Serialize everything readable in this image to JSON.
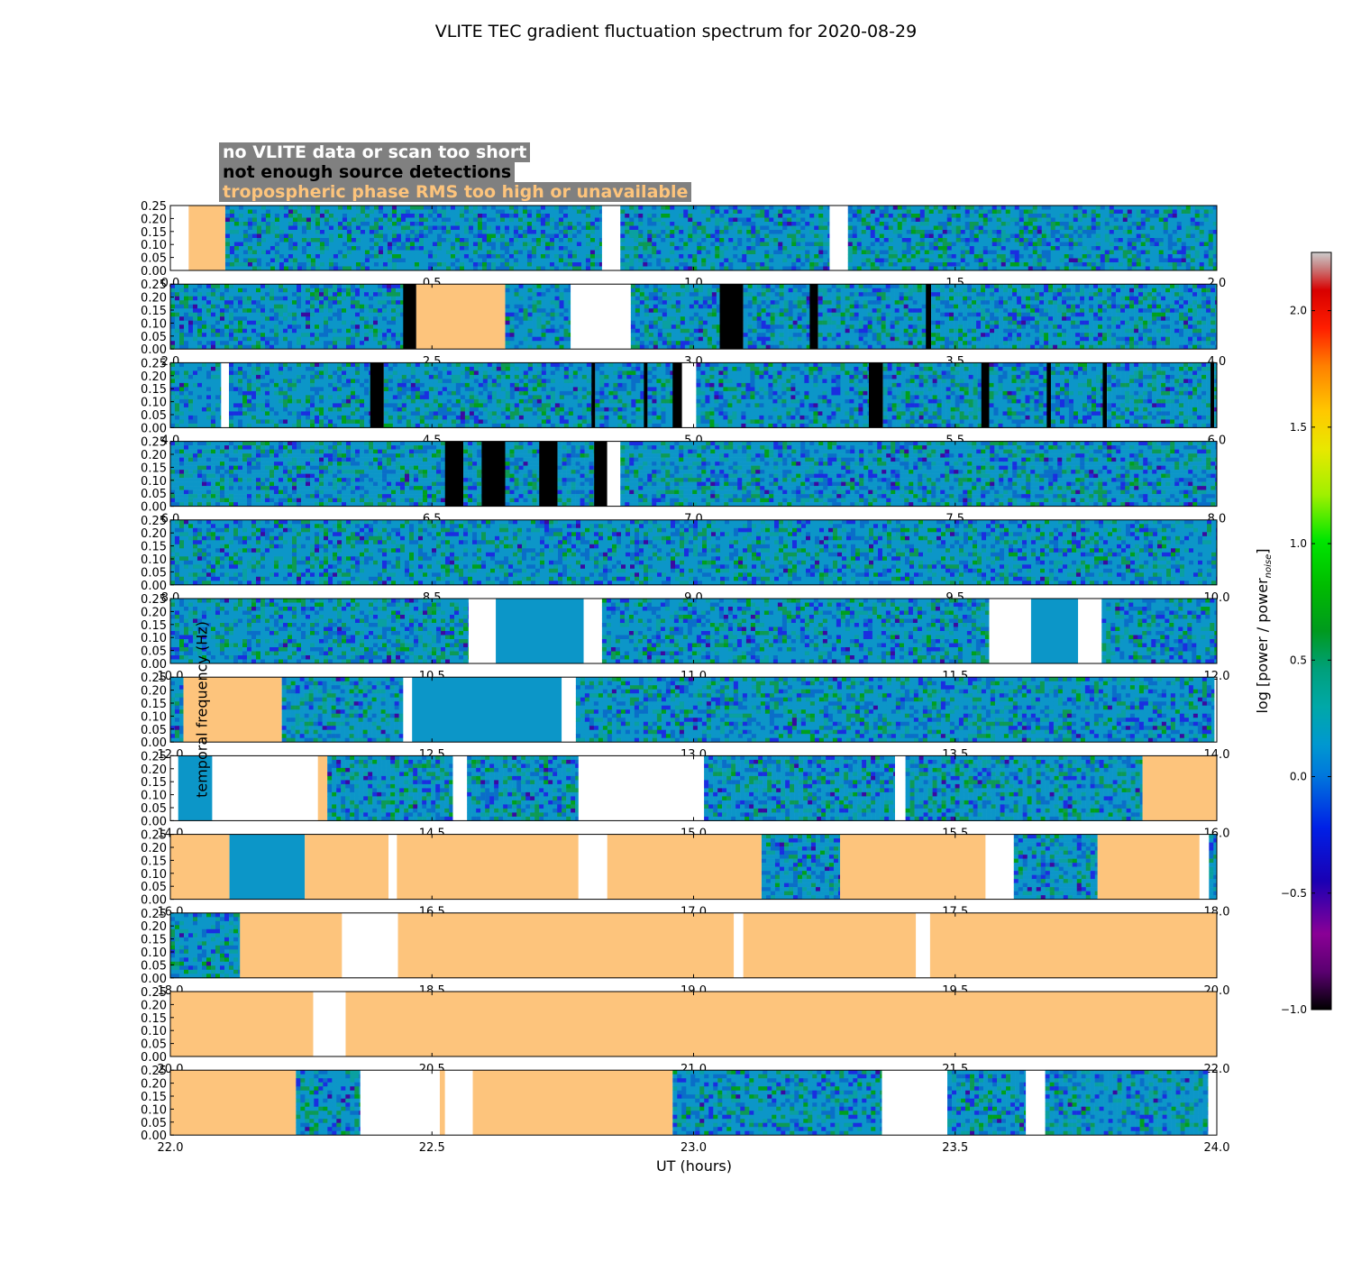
{
  "chart_data": {
    "type": "heatmap",
    "title": "VLITE TEC gradient fluctuation spectrum for 2020-08-29",
    "xlabel": "UT (hours)",
    "ylabel": "temporal frequency (Hz)",
    "colorbar": {
      "label": "log [power / power",
      "label_sub": "noise",
      "label_end": "]",
      "range": [
        -1.0,
        2.25
      ],
      "ticks": [
        "−1.0",
        "−0.5",
        "0.0",
        "0.5",
        "1.0",
        "1.5",
        "2.0"
      ],
      "tick_values": [
        -1.0,
        -0.5,
        0.0,
        0.5,
        1.0,
        1.5,
        2.0
      ],
      "colormap": "nipy_spectral"
    },
    "legend": [
      {
        "label": "no VLITE data or scan too short",
        "color": "#ffffff"
      },
      {
        "label": "not enough source detections",
        "color": "#000000"
      },
      {
        "label": "tropospheric phase RMS too high or unavailable",
        "color": "#fdc47c"
      }
    ],
    "ylim": [
      0,
      0.25
    ],
    "yticks": [
      "0.00",
      "0.05",
      "0.10",
      "0.15",
      "0.20",
      "0.25"
    ],
    "panels": [
      {
        "xlim": [
          0,
          2
        ],
        "xticks": [
          "0.0",
          "0.5",
          "1.0",
          "1.5",
          "2.0"
        ],
        "segments": [
          [
            0,
            0.035,
            "white"
          ],
          [
            0.035,
            0.105,
            "orange"
          ],
          [
            0.105,
            0.825,
            "data"
          ],
          [
            0.825,
            0.86,
            "white"
          ],
          [
            0.86,
            1.26,
            "data"
          ],
          [
            1.26,
            1.295,
            "white"
          ],
          [
            1.295,
            2,
            "data"
          ]
        ]
      },
      {
        "xlim": [
          2,
          4
        ],
        "xticks": [
          "2.0",
          "2.5",
          "3.0",
          "3.5",
          "4.0"
        ],
        "segments": [
          [
            2,
            2.445,
            "data"
          ],
          [
            2.445,
            2.47,
            "black"
          ],
          [
            2.47,
            2.64,
            "orange"
          ],
          [
            2.64,
            2.765,
            "data"
          ],
          [
            2.765,
            2.88,
            "white"
          ],
          [
            2.88,
            3.05,
            "data"
          ],
          [
            3.05,
            3.095,
            "black"
          ],
          [
            3.095,
            3.222,
            "data"
          ],
          [
            3.222,
            3.238,
            "black"
          ],
          [
            3.238,
            3.444,
            "data"
          ],
          [
            3.444,
            3.454,
            "black"
          ],
          [
            3.454,
            4,
            "data"
          ]
        ]
      },
      {
        "xlim": [
          4,
          6
        ],
        "xticks": [
          "4.0",
          "4.5",
          "5.0",
          "5.5",
          "6.0"
        ],
        "segments": [
          [
            4,
            4.097,
            "data"
          ],
          [
            4.097,
            4.112,
            "white"
          ],
          [
            4.112,
            4.382,
            "data"
          ],
          [
            4.382,
            4.408,
            "black"
          ],
          [
            4.408,
            4.805,
            "data"
          ],
          [
            4.805,
            4.812,
            "black"
          ],
          [
            4.812,
            4.905,
            "data"
          ],
          [
            4.905,
            4.912,
            "black"
          ],
          [
            4.912,
            4.96,
            "data"
          ],
          [
            4.96,
            4.978,
            "black"
          ],
          [
            4.978,
            5.005,
            "white"
          ],
          [
            5.005,
            5.335,
            "data"
          ],
          [
            5.335,
            5.362,
            "black"
          ],
          [
            5.362,
            5.55,
            "data"
          ],
          [
            5.55,
            5.565,
            "black"
          ],
          [
            5.565,
            5.675,
            "data"
          ],
          [
            5.675,
            5.683,
            "black"
          ],
          [
            5.683,
            5.782,
            "data"
          ],
          [
            5.782,
            5.79,
            "black"
          ],
          [
            5.79,
            5.988,
            "data"
          ],
          [
            5.988,
            5.995,
            "black"
          ],
          [
            5.995,
            6,
            "data"
          ]
        ]
      },
      {
        "xlim": [
          6,
          8
        ],
        "xticks": [
          "6.0",
          "6.5",
          "7.0",
          "7.5",
          "8.0"
        ],
        "segments": [
          [
            6,
            6.525,
            "data"
          ],
          [
            6.525,
            6.56,
            "black"
          ],
          [
            6.56,
            6.595,
            "data"
          ],
          [
            6.595,
            6.64,
            "black"
          ],
          [
            6.64,
            6.705,
            "data"
          ],
          [
            6.705,
            6.74,
            "black"
          ],
          [
            6.74,
            6.81,
            "data"
          ],
          [
            6.81,
            6.835,
            "black"
          ],
          [
            6.835,
            6.86,
            "white"
          ],
          [
            6.86,
            8,
            "data"
          ]
        ]
      },
      {
        "xlim": [
          8,
          10
        ],
        "xticks": [
          "8.0",
          "8.5",
          "9.0",
          "9.5",
          "10.0"
        ],
        "segments": [
          [
            8,
            10,
            "data"
          ]
        ]
      },
      {
        "xlim": [
          10,
          12
        ],
        "xticks": [
          "10.0",
          "10.5",
          "11.0",
          "11.5",
          "12.0"
        ],
        "segments": [
          [
            10,
            10.57,
            "data"
          ],
          [
            10.57,
            10.622,
            "white"
          ],
          [
            10.622,
            10.79,
            "blue"
          ],
          [
            10.79,
            10.825,
            "white"
          ],
          [
            10.825,
            11.565,
            "data"
          ],
          [
            11.565,
            11.645,
            "white"
          ],
          [
            11.645,
            11.735,
            "blue"
          ],
          [
            11.735,
            11.78,
            "white"
          ],
          [
            11.78,
            12,
            "data"
          ]
        ]
      },
      {
        "xlim": [
          12,
          14
        ],
        "xticks": [
          "12.0",
          "12.5",
          "13.0",
          "13.5",
          "14.0"
        ],
        "segments": [
          [
            12,
            12.025,
            "data"
          ],
          [
            12.025,
            12.213,
            "orange"
          ],
          [
            12.213,
            12.445,
            "data"
          ],
          [
            12.445,
            12.462,
            "white"
          ],
          [
            12.462,
            12.748,
            "blue"
          ],
          [
            12.748,
            12.775,
            "white"
          ],
          [
            12.775,
            13.995,
            "data"
          ]
        ]
      },
      {
        "xlim": [
          14,
          16
        ],
        "xticks": [
          "14.0",
          "14.5",
          "15.0",
          "15.5",
          "16.0"
        ],
        "segments": [
          [
            14,
            14.015,
            "white"
          ],
          [
            14.015,
            14.08,
            "blue"
          ],
          [
            14.08,
            14.282,
            "white"
          ],
          [
            14.282,
            14.3,
            "orange"
          ],
          [
            14.3,
            14.54,
            "data"
          ],
          [
            14.54,
            14.567,
            "white"
          ],
          [
            14.567,
            14.78,
            "data"
          ],
          [
            14.78,
            15.02,
            "white"
          ],
          [
            15.02,
            15.385,
            "data"
          ],
          [
            15.385,
            15.405,
            "white"
          ],
          [
            15.405,
            15.858,
            "data"
          ],
          [
            15.858,
            16,
            "orange"
          ]
        ]
      },
      {
        "xlim": [
          16,
          18
        ],
        "xticks": [
          "16.0",
          "16.5",
          "17.0",
          "17.5",
          "18.0"
        ],
        "segments": [
          [
            16,
            16.113,
            "orange"
          ],
          [
            16.113,
            16.257,
            "blue"
          ],
          [
            16.257,
            16.417,
            "orange"
          ],
          [
            16.417,
            16.433,
            "white"
          ],
          [
            16.433,
            16.78,
            "orange"
          ],
          [
            16.78,
            16.835,
            "white"
          ],
          [
            16.835,
            17.13,
            "orange"
          ],
          [
            17.13,
            17.28,
            "data"
          ],
          [
            17.28,
            17.558,
            "orange"
          ],
          [
            17.558,
            17.612,
            "white"
          ],
          [
            17.612,
            17.772,
            "data"
          ],
          [
            17.772,
            17.967,
            "orange"
          ],
          [
            17.967,
            17.985,
            "white"
          ],
          [
            17.985,
            18,
            "data"
          ]
        ]
      },
      {
        "xlim": [
          18,
          20
        ],
        "xticks": [
          "18.0",
          "18.5",
          "19.0",
          "19.5",
          "20.0"
        ],
        "segments": [
          [
            18,
            18.133,
            "data"
          ],
          [
            18.133,
            18.328,
            "orange"
          ],
          [
            18.328,
            18.435,
            "white"
          ],
          [
            18.435,
            19.077,
            "orange"
          ],
          [
            19.077,
            19.095,
            "white"
          ],
          [
            19.095,
            19.425,
            "orange"
          ],
          [
            19.425,
            19.452,
            "white"
          ],
          [
            19.452,
            20,
            "orange"
          ]
        ]
      },
      {
        "xlim": [
          20,
          22
        ],
        "xticks": [
          "20.0",
          "20.5",
          "21.0",
          "21.5",
          "22.0"
        ],
        "segments": [
          [
            20,
            20.273,
            "orange"
          ],
          [
            20.273,
            20.335,
            "white"
          ],
          [
            20.335,
            22,
            "orange"
          ]
        ]
      },
      {
        "xlim": [
          22,
          24
        ],
        "xticks": [
          "22.0",
          "22.5",
          "23.0",
          "23.5",
          "24.0"
        ],
        "segments": [
          [
            22,
            22.24,
            "orange"
          ],
          [
            22.24,
            22.363,
            "data"
          ],
          [
            22.363,
            22.515,
            "white"
          ],
          [
            22.515,
            22.525,
            "orange"
          ],
          [
            22.525,
            22.578,
            "white"
          ],
          [
            22.578,
            22.96,
            "orange"
          ],
          [
            22.96,
            23.36,
            "data"
          ],
          [
            23.36,
            23.485,
            "white"
          ],
          [
            23.485,
            23.635,
            "data"
          ],
          [
            23.635,
            23.672,
            "white"
          ],
          [
            23.672,
            23.983,
            "data"
          ]
        ]
      }
    ]
  }
}
